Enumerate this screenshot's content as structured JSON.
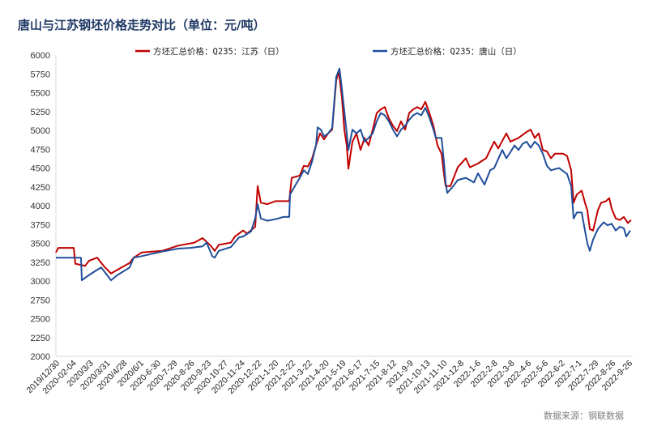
{
  "chart_data": {
    "type": "line",
    "title": "唐山与江苏钢坯价格走势对比（单位：元/吨）",
    "source": "数据来源：钢联数据",
    "xlabel": "",
    "ylabel": "",
    "ylim": [
      2000,
      6000
    ],
    "ytick_step": 250,
    "yticks": [
      "2000",
      "2250",
      "2500",
      "2750",
      "3000",
      "3250",
      "3500",
      "3750",
      "4000",
      "4250",
      "4500",
      "4750",
      "5000",
      "5250",
      "5500",
      "5750",
      "6000"
    ],
    "x_unit": "trading-day index from 2019/12/30",
    "xlim": [
      0,
      710
    ],
    "x_tick_labels": [
      "2019/12/30",
      "2020-02-04",
      "2020/3/3",
      "2020/3/31",
      "2020/4/28",
      "2020/6/1",
      "2020-6-30",
      "2020-7-29",
      "2020-8-26",
      "2020-9-23",
      "2020-10-27",
      "2020-11-24",
      "2020-12-22",
      "2021-1-20",
      "2021-2-22",
      "2021-3-22",
      "2021-4-20",
      "2021-5-19",
      "2021-6-17",
      "2021-7-15",
      "2021-8-12",
      "2021-9-9",
      "2021-10-13",
      "2021-11-10",
      "2021-12-8",
      "2022-1-6",
      "2022-2-8",
      "2022-3-8",
      "2022-4-6",
      "2022-5-6",
      "2022-6-2",
      "2022-7-1",
      "2022-7-29",
      "2022-8-26",
      "2022-9-26"
    ],
    "grid": false,
    "legend_position": "top-center",
    "series": [
      {
        "name": "方坯汇总价格：Q235：江苏（日）",
        "color": "#c00000",
        "points": [
          [
            0,
            3380
          ],
          [
            3,
            3440
          ],
          [
            22,
            3440
          ],
          [
            24,
            3230
          ],
          [
            36,
            3200
          ],
          [
            41,
            3270
          ],
          [
            51,
            3310
          ],
          [
            59,
            3200
          ],
          [
            68,
            3100
          ],
          [
            76,
            3150
          ],
          [
            91,
            3240
          ],
          [
            96,
            3310
          ],
          [
            106,
            3380
          ],
          [
            131,
            3400
          ],
          [
            151,
            3470
          ],
          [
            171,
            3510
          ],
          [
            181,
            3570
          ],
          [
            191,
            3470
          ],
          [
            196,
            3400
          ],
          [
            201,
            3480
          ],
          [
            216,
            3510
          ],
          [
            221,
            3590
          ],
          [
            231,
            3670
          ],
          [
            236,
            3630
          ],
          [
            246,
            3720
          ],
          [
            249,
            4260
          ],
          [
            253,
            4040
          ],
          [
            261,
            4020
          ],
          [
            271,
            4060
          ],
          [
            288,
            4060
          ],
          [
            291,
            4370
          ],
          [
            301,
            4400
          ],
          [
            306,
            4530
          ],
          [
            311,
            4520
          ],
          [
            316,
            4620
          ],
          [
            321,
            4800
          ],
          [
            326,
            4960
          ],
          [
            331,
            4880
          ],
          [
            336,
            4960
          ],
          [
            341,
            5010
          ],
          [
            346,
            5660
          ],
          [
            349,
            5790
          ],
          [
            353,
            5440
          ],
          [
            356,
            5010
          ],
          [
            359,
            4800
          ],
          [
            361,
            4490
          ],
          [
            366,
            4850
          ],
          [
            371,
            4960
          ],
          [
            376,
            4740
          ],
          [
            381,
            4900
          ],
          [
            386,
            4800
          ],
          [
            391,
            5010
          ],
          [
            396,
            5230
          ],
          [
            401,
            5280
          ],
          [
            406,
            5310
          ],
          [
            411,
            5160
          ],
          [
            416,
            5060
          ],
          [
            421,
            4990
          ],
          [
            426,
            5120
          ],
          [
            431,
            5010
          ],
          [
            436,
            5230
          ],
          [
            441,
            5280
          ],
          [
            446,
            5310
          ],
          [
            451,
            5280
          ],
          [
            456,
            5380
          ],
          [
            461,
            5230
          ],
          [
            466,
            5060
          ],
          [
            471,
            4800
          ],
          [
            476,
            4690
          ],
          [
            479,
            4420
          ],
          [
            481,
            4260
          ],
          [
            487,
            4260
          ],
          [
            496,
            4510
          ],
          [
            506,
            4630
          ],
          [
            511,
            4510
          ],
          [
            521,
            4560
          ],
          [
            531,
            4630
          ],
          [
            541,
            4850
          ],
          [
            546,
            4760
          ],
          [
            556,
            4960
          ],
          [
            561,
            4850
          ],
          [
            571,
            4900
          ],
          [
            581,
            4980
          ],
          [
            586,
            5010
          ],
          [
            591,
            4900
          ],
          [
            596,
            4960
          ],
          [
            601,
            4740
          ],
          [
            606,
            4720
          ],
          [
            611,
            4630
          ],
          [
            616,
            4690
          ],
          [
            626,
            4690
          ],
          [
            631,
            4660
          ],
          [
            636,
            4470
          ],
          [
            639,
            4040
          ],
          [
            643,
            4150
          ],
          [
            649,
            4200
          ],
          [
            653,
            4040
          ],
          [
            656,
            3940
          ],
          [
            659,
            3690
          ],
          [
            663,
            3670
          ],
          [
            669,
            3940
          ],
          [
            673,
            4040
          ],
          [
            679,
            4060
          ],
          [
            683,
            4100
          ],
          [
            686,
            3960
          ],
          [
            691,
            3830
          ],
          [
            696,
            3810
          ],
          [
            701,
            3850
          ],
          [
            706,
            3770
          ],
          [
            710,
            3810
          ]
        ]
      },
      {
        "name": "方坯汇总价格：Q235：唐山（日）",
        "color": "#1f4e9a",
        "points": [
          [
            0,
            3310
          ],
          [
            31,
            3310
          ],
          [
            32,
            3010
          ],
          [
            41,
            3080
          ],
          [
            51,
            3150
          ],
          [
            56,
            3180
          ],
          [
            68,
            3010
          ],
          [
            76,
            3080
          ],
          [
            91,
            3180
          ],
          [
            96,
            3310
          ],
          [
            106,
            3330
          ],
          [
            131,
            3390
          ],
          [
            151,
            3430
          ],
          [
            166,
            3440
          ],
          [
            181,
            3460
          ],
          [
            186,
            3510
          ],
          [
            193,
            3330
          ],
          [
            196,
            3310
          ],
          [
            201,
            3400
          ],
          [
            216,
            3450
          ],
          [
            226,
            3580
          ],
          [
            231,
            3590
          ],
          [
            241,
            3660
          ],
          [
            246,
            3830
          ],
          [
            249,
            4020
          ],
          [
            253,
            3830
          ],
          [
            261,
            3800
          ],
          [
            271,
            3820
          ],
          [
            281,
            3850
          ],
          [
            288,
            3850
          ],
          [
            289,
            4150
          ],
          [
            296,
            4280
          ],
          [
            301,
            4370
          ],
          [
            306,
            4470
          ],
          [
            311,
            4420
          ],
          [
            316,
            4580
          ],
          [
            321,
            4800
          ],
          [
            323,
            5040
          ],
          [
            327,
            5010
          ],
          [
            331,
            4920
          ],
          [
            336,
            4960
          ],
          [
            341,
            5030
          ],
          [
            346,
            5710
          ],
          [
            350,
            5820
          ],
          [
            353,
            5550
          ],
          [
            359,
            4960
          ],
          [
            361,
            4740
          ],
          [
            366,
            5010
          ],
          [
            371,
            4960
          ],
          [
            376,
            5010
          ],
          [
            381,
            4850
          ],
          [
            386,
            4900
          ],
          [
            391,
            4960
          ],
          [
            396,
            5120
          ],
          [
            401,
            5230
          ],
          [
            406,
            5200
          ],
          [
            411,
            5120
          ],
          [
            416,
            5010
          ],
          [
            421,
            4920
          ],
          [
            426,
            5010
          ],
          [
            431,
            5060
          ],
          [
            436,
            5140
          ],
          [
            441,
            5200
          ],
          [
            446,
            5230
          ],
          [
            451,
            5200
          ],
          [
            456,
            5300
          ],
          [
            461,
            5170
          ],
          [
            466,
            5010
          ],
          [
            469,
            4900
          ],
          [
            476,
            4900
          ],
          [
            479,
            4580
          ],
          [
            481,
            4310
          ],
          [
            483,
            4170
          ],
          [
            489,
            4240
          ],
          [
            496,
            4340
          ],
          [
            506,
            4370
          ],
          [
            516,
            4310
          ],
          [
            521,
            4430
          ],
          [
            529,
            4280
          ],
          [
            536,
            4470
          ],
          [
            541,
            4500
          ],
          [
            546,
            4620
          ],
          [
            551,
            4740
          ],
          [
            556,
            4630
          ],
          [
            561,
            4710
          ],
          [
            566,
            4800
          ],
          [
            571,
            4740
          ],
          [
            576,
            4820
          ],
          [
            581,
            4850
          ],
          [
            586,
            4770
          ],
          [
            591,
            4850
          ],
          [
            596,
            4800
          ],
          [
            601,
            4690
          ],
          [
            606,
            4530
          ],
          [
            611,
            4470
          ],
          [
            621,
            4500
          ],
          [
            631,
            4420
          ],
          [
            636,
            4260
          ],
          [
            639,
            3830
          ],
          [
            643,
            3910
          ],
          [
            649,
            3910
          ],
          [
            653,
            3670
          ],
          [
            656,
            3500
          ],
          [
            659,
            3400
          ],
          [
            663,
            3550
          ],
          [
            669,
            3690
          ],
          [
            676,
            3780
          ],
          [
            681,
            3740
          ],
          [
            686,
            3760
          ],
          [
            691,
            3670
          ],
          [
            696,
            3720
          ],
          [
            701,
            3700
          ],
          [
            704,
            3590
          ],
          [
            709,
            3670
          ]
        ]
      }
    ]
  }
}
